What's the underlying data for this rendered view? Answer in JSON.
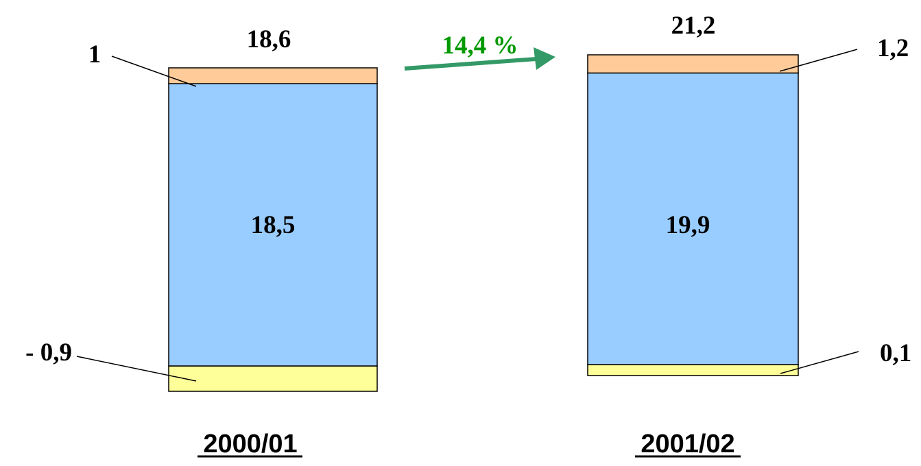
{
  "chart_data": {
    "type": "bar",
    "stacked": true,
    "categories": [
      "2000/01",
      "2001/02"
    ],
    "series": [
      {
        "values": [
          -0.9,
          0.1
        ],
        "color": "#ffff99"
      },
      {
        "values": [
          18.5,
          19.9
        ],
        "color": "#99ccff"
      },
      {
        "values": [
          1,
          1.2
        ],
        "color": "#ffcc99"
      }
    ],
    "data_labels": [
      [
        "- 0,9",
        "18,5",
        "1"
      ],
      [
        "0,1",
        "19,9",
        "1,2"
      ]
    ],
    "totals": [
      18.6,
      21.2
    ],
    "total_labels": [
      "18,6",
      "21,2"
    ],
    "growth": {
      "label": "14,4 %",
      "color": "#339966",
      "text_color": "#009900"
    },
    "legend": "none",
    "grid": false
  }
}
